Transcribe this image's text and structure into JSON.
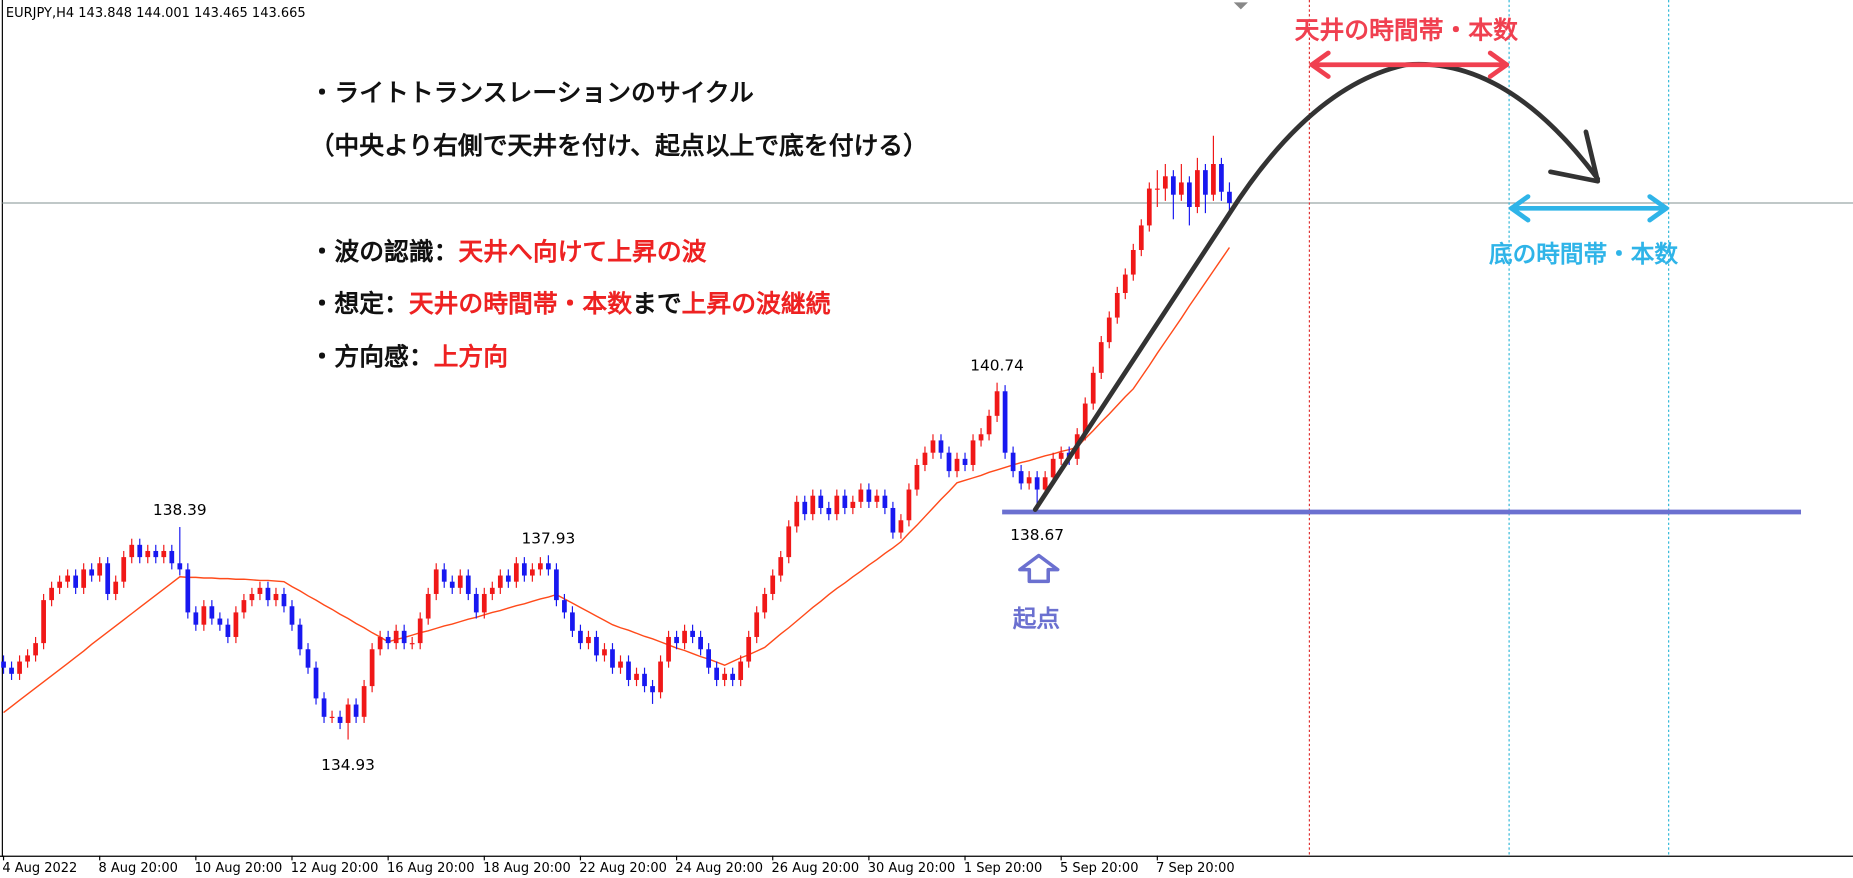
{
  "chart_data": {
    "type": "candlestick",
    "symbol": "EURJPY,H4",
    "up_color": "#f01818",
    "down_color": "#1818f0",
    "ylim": [
      133.04,
      146.97
    ],
    "categories": [
      "4 Aug 2022",
      null,
      null,
      null,
      null,
      null,
      null,
      null,
      null,
      null,
      null,
      null,
      "8 Aug 20:00",
      null,
      null,
      null,
      null,
      null,
      null,
      null,
      null,
      null,
      null,
      null,
      "10 Aug 20:00",
      null,
      null,
      null,
      null,
      null,
      null,
      null,
      null,
      null,
      null,
      null,
      "12 Aug 20:00",
      null,
      null,
      null,
      null,
      null,
      null,
      null,
      null,
      null,
      null,
      null,
      "16 Aug 20:00",
      null,
      null,
      null,
      null,
      null,
      null,
      null,
      null,
      null,
      null,
      null,
      "18 Aug 20:00",
      null,
      null,
      null,
      null,
      null,
      null,
      null,
      null,
      null,
      null,
      null,
      "22 Aug 20:00",
      null,
      null,
      null,
      null,
      null,
      null,
      null,
      null,
      null,
      null,
      null,
      "24 Aug 20:00",
      null,
      null,
      null,
      null,
      null,
      null,
      null,
      null,
      null,
      null,
      null,
      "26 Aug 20:00",
      null,
      null,
      null,
      null,
      null,
      null,
      null,
      null,
      null,
      null,
      null,
      "30 Aug 20:00",
      null,
      null,
      null,
      null,
      null,
      null,
      null,
      null,
      null,
      null,
      null,
      "1 Sep 20:00",
      null,
      null,
      null,
      null,
      null,
      null,
      null,
      null,
      null,
      null,
      null,
      "5 Sep 20:00",
      null,
      null,
      null,
      null,
      null,
      null,
      null,
      null,
      null,
      null,
      null,
      "7 Sep 20:00",
      null,
      null,
      null,
      null,
      null,
      null,
      null,
      null,
      null
    ],
    "open": [
      136.2,
      136.1,
      136.0,
      136.2,
      136.3,
      136.5,
      137.2,
      137.4,
      137.5,
      137.6,
      137.4,
      137.7,
      137.6,
      137.8,
      137.3,
      137.5,
      137.9,
      138.1,
      137.9,
      138.0,
      137.9,
      138.0,
      137.8,
      137.7,
      137.0,
      136.8,
      137.1,
      136.9,
      136.8,
      136.6,
      137.0,
      137.2,
      137.3,
      137.4,
      137.2,
      137.3,
      137.1,
      136.8,
      136.4,
      136.1,
      135.6,
      135.3,
      135.3,
      135.2,
      135.5,
      135.3,
      135.8,
      136.4,
      136.6,
      136.5,
      136.7,
      136.5,
      136.5,
      136.9,
      137.3,
      137.7,
      137.5,
      137.4,
      137.6,
      137.3,
      137.0,
      137.3,
      137.4,
      137.6,
      137.5,
      137.8,
      137.6,
      137.7,
      137.8,
      137.7,
      137.2,
      137.0,
      136.7,
      136.5,
      136.6,
      136.3,
      136.4,
      136.1,
      136.2,
      135.9,
      136.0,
      135.8,
      135.7,
      136.2,
      136.6,
      136.5,
      136.7,
      136.6,
      136.4,
      136.1,
      135.9,
      136.0,
      135.9,
      136.2,
      136.6,
      137.0,
      137.3,
      137.6,
      137.9,
      138.4,
      138.8,
      138.6,
      138.9,
      138.7,
      138.6,
      138.9,
      138.7,
      138.8,
      139.0,
      138.8,
      138.9,
      138.7,
      138.3,
      138.5,
      139.0,
      139.4,
      139.6,
      139.8,
      139.6,
      139.3,
      139.5,
      139.4,
      139.8,
      139.9,
      140.2,
      140.6,
      139.6,
      139.3,
      139.1,
      139.2,
      139.0,
      139.2,
      139.5,
      139.6,
      139.5,
      139.9,
      140.4,
      140.9,
      141.4,
      141.8,
      142.2,
      142.5,
      142.9,
      143.3,
      143.9,
      143.9,
      144.1,
      143.8,
      144.0,
      143.6,
      144.2,
      143.8,
      144.3,
      143.848
    ],
    "high": [
      136.3,
      136.2,
      136.3,
      136.4,
      136.6,
      137.3,
      137.5,
      137.6,
      137.7,
      137.7,
      137.8,
      137.8,
      137.9,
      137.9,
      137.6,
      138.0,
      138.2,
      138.2,
      138.1,
      138.1,
      138.1,
      138.1,
      138.39,
      137.8,
      137.1,
      137.2,
      137.2,
      137.0,
      136.9,
      137.1,
      137.3,
      137.4,
      137.5,
      137.5,
      137.4,
      137.4,
      137.2,
      136.9,
      136.5,
      136.2,
      135.7,
      135.4,
      135.4,
      135.6,
      135.6,
      135.9,
      136.5,
      136.7,
      136.7,
      136.8,
      136.8,
      136.6,
      137.0,
      137.4,
      137.8,
      137.8,
      137.6,
      137.7,
      137.7,
      137.4,
      137.4,
      137.5,
      137.7,
      137.7,
      137.9,
      137.9,
      137.8,
      137.9,
      137.93,
      137.8,
      137.3,
      137.1,
      136.8,
      136.7,
      136.7,
      136.5,
      136.5,
      136.3,
      136.3,
      136.1,
      136.1,
      135.9,
      136.3,
      136.7,
      136.7,
      136.8,
      136.8,
      136.7,
      136.5,
      136.2,
      136.1,
      136.1,
      136.3,
      136.7,
      137.1,
      137.4,
      137.7,
      138.0,
      138.5,
      138.9,
      138.9,
      139.0,
      139.0,
      138.8,
      139.0,
      139.0,
      138.9,
      139.1,
      139.1,
      139.0,
      139.0,
      138.8,
      138.6,
      139.1,
      139.5,
      139.7,
      139.9,
      139.9,
      139.7,
      139.6,
      139.6,
      139.9,
      140.0,
      140.3,
      140.74,
      140.7,
      139.7,
      139.4,
      139.3,
      139.3,
      139.3,
      139.6,
      139.7,
      139.7,
      140.0,
      140.5,
      141.0,
      141.5,
      141.9,
      142.3,
      142.6,
      143.0,
      143.4,
      144.0,
      144.2,
      144.3,
      144.2,
      144.3,
      144.1,
      144.4,
      144.3,
      144.76,
      144.4,
      144.001
    ],
    "low": [
      136.0,
      135.9,
      135.9,
      136.1,
      136.2,
      136.4,
      137.1,
      137.3,
      137.4,
      137.3,
      137.3,
      137.5,
      137.5,
      137.2,
      137.2,
      137.4,
      137.8,
      137.8,
      137.8,
      137.8,
      137.8,
      137.7,
      137.6,
      136.9,
      136.7,
      136.7,
      136.8,
      136.7,
      136.5,
      136.5,
      136.9,
      137.1,
      137.2,
      137.1,
      137.1,
      137.0,
      136.7,
      136.3,
      136.0,
      135.5,
      135.2,
      135.2,
      135.1,
      134.93,
      135.2,
      135.2,
      135.7,
      136.3,
      136.4,
      136.4,
      136.4,
      136.4,
      136.4,
      136.8,
      137.2,
      137.4,
      137.3,
      137.3,
      137.2,
      136.9,
      136.9,
      137.2,
      137.3,
      137.4,
      137.4,
      137.5,
      137.5,
      137.6,
      137.6,
      137.1,
      136.9,
      136.6,
      136.4,
      136.4,
      136.2,
      136.2,
      136.0,
      136.0,
      135.8,
      135.8,
      135.7,
      135.51,
      135.6,
      136.1,
      136.4,
      136.4,
      136.5,
      136.3,
      136.0,
      135.8,
      135.8,
      135.8,
      135.8,
      136.1,
      136.5,
      136.9,
      137.2,
      137.5,
      137.8,
      138.3,
      138.5,
      138.5,
      138.6,
      138.5,
      138.5,
      138.6,
      138.6,
      138.7,
      138.7,
      138.7,
      138.6,
      138.2,
      138.2,
      138.4,
      138.9,
      139.3,
      139.5,
      139.5,
      139.2,
      139.2,
      139.3,
      139.3,
      139.7,
      139.8,
      140.1,
      139.5,
      139.2,
      139.0,
      139.0,
      138.67,
      138.9,
      139.1,
      139.4,
      139.4,
      139.4,
      139.8,
      140.3,
      140.8,
      141.3,
      141.7,
      142.1,
      142.4,
      142.8,
      143.2,
      143.6,
      143.7,
      143.4,
      143.7,
      143.3,
      143.5,
      143.5,
      143.7,
      143.7,
      143.465
    ],
    "close": [
      136.1,
      136.0,
      136.2,
      136.3,
      136.5,
      137.2,
      137.4,
      137.5,
      137.6,
      137.4,
      137.7,
      137.6,
      137.8,
      137.3,
      137.5,
      137.9,
      138.1,
      137.9,
      138.0,
      137.9,
      138.0,
      137.8,
      137.7,
      137.0,
      136.8,
      137.1,
      136.9,
      136.8,
      136.6,
      137.0,
      137.2,
      137.3,
      137.4,
      137.2,
      137.3,
      137.1,
      136.8,
      136.4,
      136.1,
      135.6,
      135.3,
      135.3,
      135.2,
      135.5,
      135.3,
      135.8,
      136.4,
      136.6,
      136.5,
      136.7,
      136.5,
      136.5,
      136.9,
      137.3,
      137.7,
      137.5,
      137.4,
      137.6,
      137.3,
      137.0,
      137.3,
      137.4,
      137.6,
      137.5,
      137.8,
      137.6,
      137.7,
      137.8,
      137.7,
      137.2,
      137.0,
      136.7,
      136.5,
      136.6,
      136.3,
      136.4,
      136.1,
      136.2,
      135.9,
      136.0,
      135.8,
      135.7,
      136.2,
      136.6,
      136.5,
      136.7,
      136.6,
      136.4,
      136.1,
      135.9,
      136.0,
      135.9,
      136.2,
      136.6,
      137.0,
      137.3,
      137.6,
      137.9,
      138.4,
      138.8,
      138.6,
      138.9,
      138.7,
      138.6,
      138.9,
      138.7,
      138.8,
      139.0,
      138.8,
      138.9,
      138.7,
      138.3,
      138.5,
      139.0,
      139.4,
      139.6,
      139.8,
      139.6,
      139.3,
      139.5,
      139.4,
      139.8,
      139.9,
      140.2,
      140.6,
      139.6,
      139.3,
      139.1,
      139.2,
      139.0,
      139.2,
      139.5,
      139.6,
      139.5,
      139.9,
      140.4,
      140.9,
      141.4,
      141.8,
      142.2,
      142.5,
      142.9,
      143.3,
      143.9,
      143.9,
      144.1,
      143.8,
      144.0,
      143.6,
      144.2,
      143.8,
      144.3,
      143.848,
      143.665
    ],
    "moving_average": {
      "color": "#ff4a1a",
      "values": [
        135.37,
        135.47,
        135.57,
        135.67,
        135.77,
        135.87,
        135.97,
        136.07,
        136.17,
        136.27,
        136.37,
        136.48,
        136.58,
        136.68,
        136.78,
        136.88,
        136.98,
        137.08,
        137.18,
        137.28,
        137.38,
        137.48,
        137.58,
        137.57,
        137.57,
        137.56,
        137.56,
        137.55,
        137.55,
        137.54,
        137.54,
        137.53,
        137.52,
        137.52,
        137.51,
        137.5,
        137.42,
        137.35,
        137.27,
        137.2,
        137.12,
        137.05,
        136.97,
        136.9,
        136.82,
        136.75,
        136.67,
        136.6,
        136.52,
        136.56,
        136.59,
        136.63,
        136.67,
        136.7,
        136.74,
        136.78,
        136.81,
        136.85,
        136.89,
        136.92,
        136.96,
        137.0,
        137.03,
        137.07,
        137.11,
        137.14,
        137.18,
        137.22,
        137.25,
        137.29,
        137.22,
        137.15,
        137.08,
        137.01,
        136.94,
        136.87,
        136.8,
        136.75,
        136.71,
        136.66,
        136.61,
        136.57,
        136.52,
        136.47,
        136.42,
        136.38,
        136.33,
        136.28,
        136.24,
        136.19,
        136.14,
        136.2,
        136.26,
        136.31,
        136.37,
        136.43,
        136.54,
        136.65,
        136.75,
        136.86,
        136.97,
        137.08,
        137.18,
        137.29,
        137.39,
        137.48,
        137.58,
        137.67,
        137.77,
        137.86,
        137.96,
        138.05,
        138.15,
        138.29,
        138.42,
        138.56,
        138.7,
        138.84,
        138.97,
        139.11,
        139.15,
        139.19,
        139.23,
        139.28,
        139.32,
        139.36,
        139.4,
        139.44,
        139.47,
        139.51,
        139.55,
        139.58,
        139.62,
        139.65,
        139.69,
        139.83,
        139.96,
        140.1,
        140.23,
        140.37,
        140.51,
        140.64,
        140.83,
        141.02,
        141.22,
        141.41,
        141.6,
        141.79,
        141.99,
        142.18,
        142.37,
        142.56,
        142.75,
        142.94
      ]
    },
    "annotations": {
      "title": "・ライトトランスレーションのサイクル",
      "subtitle": "（中央より右側で天井を付け、起点以上で底を付ける）",
      "wave_label": "・波の認識：",
      "wave_value": "天井へ向けて上昇の波",
      "assume_label": "・想定：",
      "assume_value_1": "天井の時間帯・本数",
      "assume_mid": "まで",
      "assume_value_2": "上昇の波継続",
      "direction_label": "・方向感：",
      "direction_value": "上方向",
      "top_zone": "天井の時間帯・本数",
      "bottom_zone": "底の時間帯・本数",
      "origin": "起点"
    }
  }
}
